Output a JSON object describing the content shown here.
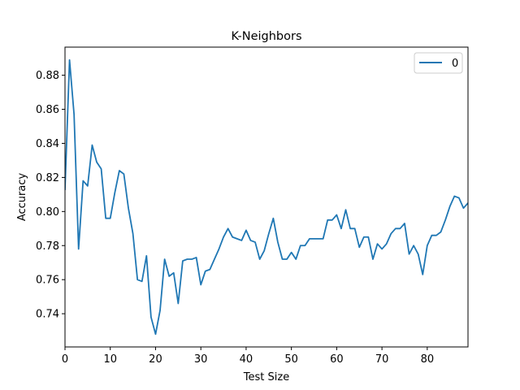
{
  "chart_data": {
    "type": "line",
    "title": "K-Neighbors",
    "xlabel": "Test Size",
    "ylabel": "Accuracy",
    "xlim": [
      0,
      89
    ],
    "ylim": [
      0.7205,
      0.8965
    ],
    "x_ticks": [
      0,
      10,
      20,
      30,
      40,
      50,
      60,
      70,
      80
    ],
    "x_tick_labels": [
      "0",
      "10",
      "20",
      "30",
      "40",
      "50",
      "60",
      "70",
      "80"
    ],
    "y_ticks": [
      0.74,
      0.76,
      0.78,
      0.8,
      0.82,
      0.84,
      0.86,
      0.88
    ],
    "y_tick_labels": [
      "0.74",
      "0.76",
      "0.78",
      "0.80",
      "0.82",
      "0.84",
      "0.86",
      "0.88"
    ],
    "grid": false,
    "legend_position": "top-right",
    "series": [
      {
        "name": "0",
        "color": "#1f77b4",
        "x": [
          0,
          1,
          2,
          3,
          4,
          5,
          6,
          7,
          8,
          9,
          10,
          11,
          12,
          13,
          14,
          15,
          16,
          17,
          18,
          19,
          20,
          21,
          22,
          23,
          24,
          25,
          26,
          27,
          28,
          29,
          30,
          31,
          32,
          33,
          34,
          35,
          36,
          37,
          38,
          39,
          40,
          41,
          42,
          43,
          44,
          45,
          46,
          47,
          48,
          49,
          50,
          51,
          52,
          53,
          54,
          55,
          56,
          57,
          58,
          59,
          60,
          61,
          62,
          63,
          64,
          65,
          66,
          67,
          68,
          69,
          70,
          71,
          72,
          73,
          74,
          75,
          76,
          77,
          78,
          79,
          80,
          81,
          82,
          83,
          84,
          85,
          86,
          87,
          88,
          89
        ],
        "values": [
          0.813,
          0.889,
          0.857,
          0.778,
          0.818,
          0.815,
          0.839,
          0.829,
          0.825,
          0.796,
          0.796,
          0.811,
          0.824,
          0.822,
          0.802,
          0.787,
          0.76,
          0.759,
          0.774,
          0.738,
          0.728,
          0.742,
          0.772,
          0.762,
          0.764,
          0.746,
          0.771,
          0.772,
          0.772,
          0.773,
          0.757,
          0.765,
          0.766,
          0.772,
          0.778,
          0.785,
          0.79,
          0.785,
          0.784,
          0.783,
          0.789,
          0.783,
          0.782,
          0.772,
          0.777,
          0.787,
          0.796,
          0.782,
          0.772,
          0.772,
          0.776,
          0.772,
          0.78,
          0.78,
          0.784,
          0.784,
          0.784,
          0.784,
          0.795,
          0.795,
          0.798,
          0.79,
          0.801,
          0.79,
          0.79,
          0.779,
          0.785,
          0.785,
          0.772,
          0.781,
          0.778,
          0.781,
          0.787,
          0.79,
          0.79,
          0.793,
          0.775,
          0.78,
          0.775,
          0.763,
          0.78,
          0.786,
          0.786,
          0.788,
          0.795,
          0.803,
          0.809,
          0.808,
          0.802,
          0.805
        ]
      }
    ]
  }
}
